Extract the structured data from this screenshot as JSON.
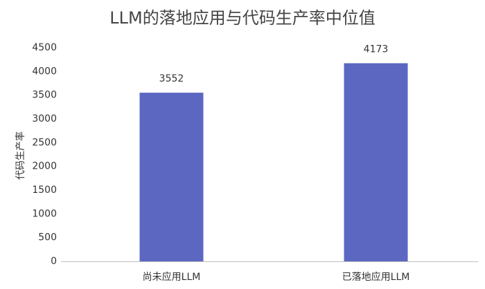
{
  "chart_data": {
    "type": "bar",
    "title": "LLM的落地应用与代码生产率中位值",
    "y_label": "代码生产率",
    "categories": [
      "尚未应用LLM",
      "已落地应用LLM"
    ],
    "values": [
      3552,
      4173
    ],
    "color": "#5b67c0",
    "ylim": [
      0,
      4500
    ],
    "yticks": [
      0,
      500,
      1000,
      1500,
      2000,
      2500,
      3000,
      3500,
      4000,
      4500
    ],
    "grid": false
  }
}
